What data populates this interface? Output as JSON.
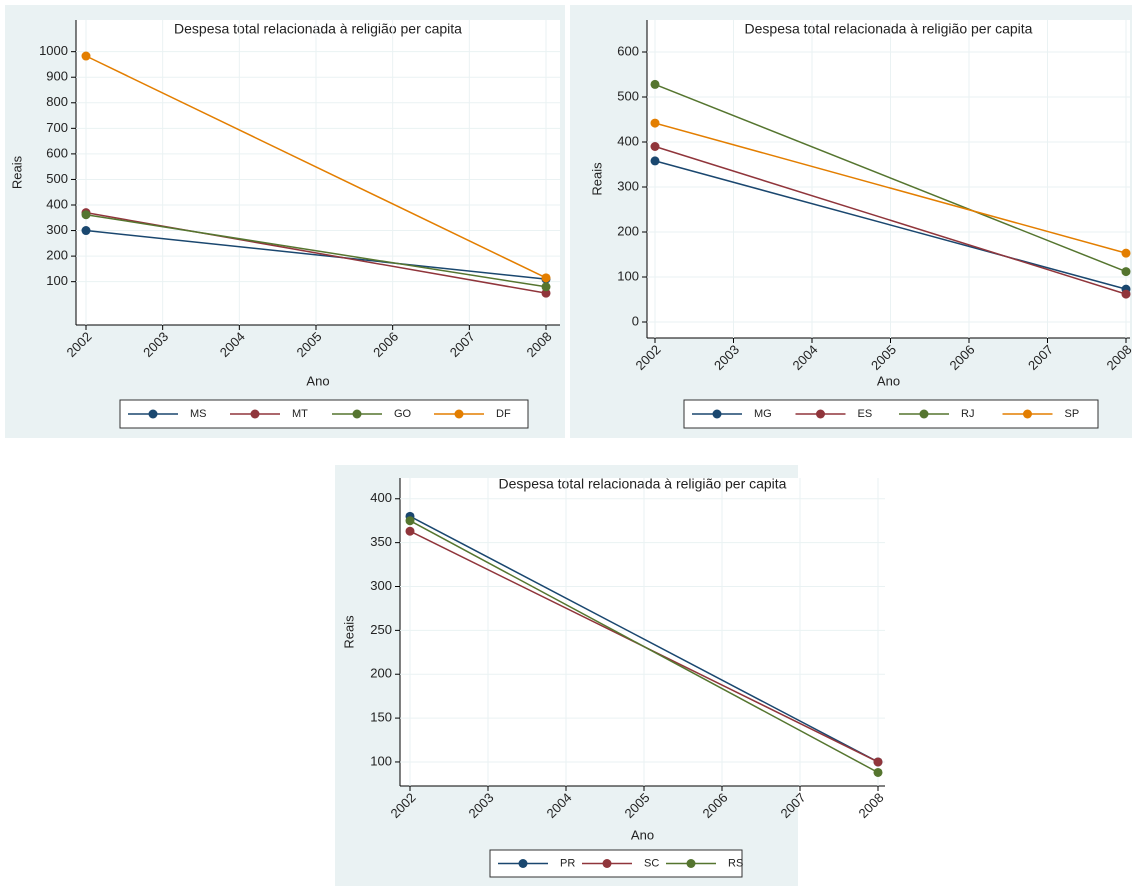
{
  "chart_data": [
    {
      "type": "line",
      "title": "Despesa total relacionada à religião per capita",
      "x_label": "Ano",
      "y_label": "Reais",
      "x": [
        2002,
        2008
      ],
      "xlim": [
        2002,
        2008
      ],
      "xticks": [
        2002,
        2003,
        2004,
        2005,
        2006,
        2007,
        2008
      ],
      "ylim": [
        40,
        1030
      ],
      "yticks": [
        100,
        200,
        300,
        400,
        500,
        600,
        700,
        800,
        900,
        1000
      ],
      "grid": true,
      "legend": "bottom",
      "series": [
        {
          "name": "MS",
          "color": "#1a476f",
          "values": [
            300,
            110
          ]
        },
        {
          "name": "MT",
          "color": "#90353b",
          "values": [
            370,
            55
          ]
        },
        {
          "name": "GO",
          "color": "#55752f",
          "values": [
            362,
            80
          ]
        },
        {
          "name": "DF",
          "color": "#e37e00",
          "values": [
            983,
            115
          ]
        }
      ]
    },
    {
      "type": "line",
      "title": "Despesa total relacionada à religião per capita",
      "x_label": "Ano",
      "y_label": "Reais",
      "x": [
        2002,
        2008
      ],
      "xlim": [
        2002,
        2008
      ],
      "xticks": [
        2002,
        2003,
        2004,
        2005,
        2006,
        2007,
        2008
      ],
      "ylim": [
        -20,
        620
      ],
      "yticks": [
        0,
        100,
        200,
        300,
        400,
        500,
        600
      ],
      "grid": true,
      "legend": "bottom",
      "series": [
        {
          "name": "MG",
          "color": "#1a476f",
          "values": [
            358,
            73
          ]
        },
        {
          "name": "ES",
          "color": "#90353b",
          "values": [
            390,
            62
          ]
        },
        {
          "name": "RJ",
          "color": "#55752f",
          "values": [
            528,
            112
          ]
        },
        {
          "name": "SP",
          "color": "#e37e00",
          "values": [
            442,
            153
          ]
        }
      ]
    },
    {
      "type": "line",
      "title": "Despesa total relacionada à religião per capita",
      "x_label": "Ano",
      "y_label": "Reais",
      "x": [
        2002,
        2008
      ],
      "xlim": [
        2002,
        2008
      ],
      "xticks": [
        2002,
        2003,
        2004,
        2005,
        2006,
        2007,
        2008
      ],
      "ylim": [
        80,
        410
      ],
      "yticks": [
        100,
        150,
        200,
        250,
        300,
        350,
        400
      ],
      "grid": true,
      "legend": "bottom",
      "series": [
        {
          "name": "PR",
          "color": "#1a476f",
          "values": [
            380,
            100
          ]
        },
        {
          "name": "SC",
          "color": "#90353b",
          "values": [
            363,
            100
          ]
        },
        {
          "name": "RS",
          "color": "#55752f",
          "values": [
            375,
            88
          ]
        }
      ]
    }
  ]
}
